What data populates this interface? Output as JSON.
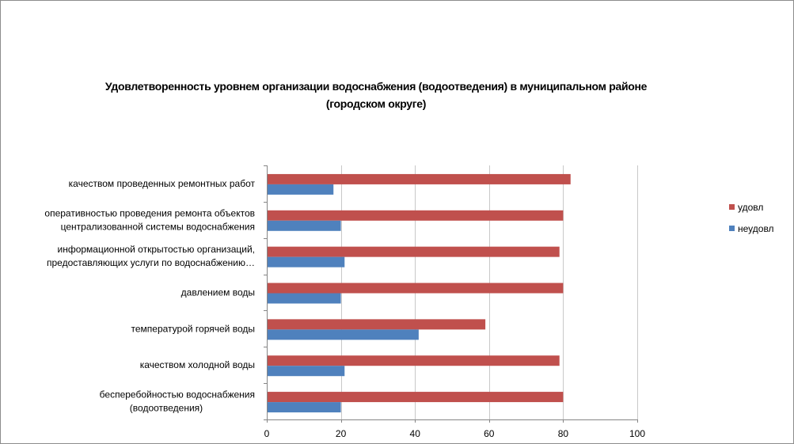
{
  "chart_data": {
    "type": "bar",
    "orientation": "horizontal",
    "title": "Удовлетворенность уровнем организации водоснабжения (водоотведения) в муниципальном районе (городском округе)",
    "title_lines": [
      "Удовлетворенность уровнем организации водоснабжения (водоотведения) в муниципальном районе",
      "(городском округе)"
    ],
    "categories": [
      [
        "качеством проведенных ремонтных работ"
      ],
      [
        "оперативностью проведения ремонта объектов",
        "централизованной системы водоснабжения"
      ],
      [
        "информационной открытостью организаций,",
        "предоставляющих услуги по водоснабжению…"
      ],
      [
        "давлением воды"
      ],
      [
        "температурой горячей воды"
      ],
      [
        "качеством холодной воды"
      ],
      [
        "бесперебойностью водоснабжения",
        "(водоотведения)"
      ]
    ],
    "series": [
      {
        "name": "удовл",
        "color": "#c0504d",
        "values": [
          82,
          80,
          79,
          80,
          59,
          79,
          80
        ]
      },
      {
        "name": "неудовл",
        "color": "#4f81bd",
        "values": [
          18,
          20,
          21,
          20,
          41,
          21,
          20
        ]
      }
    ],
    "xlim": [
      0,
      100
    ],
    "xticks": [
      0,
      20,
      40,
      60,
      80,
      100
    ],
    "grid": true,
    "legend_position": "right"
  }
}
